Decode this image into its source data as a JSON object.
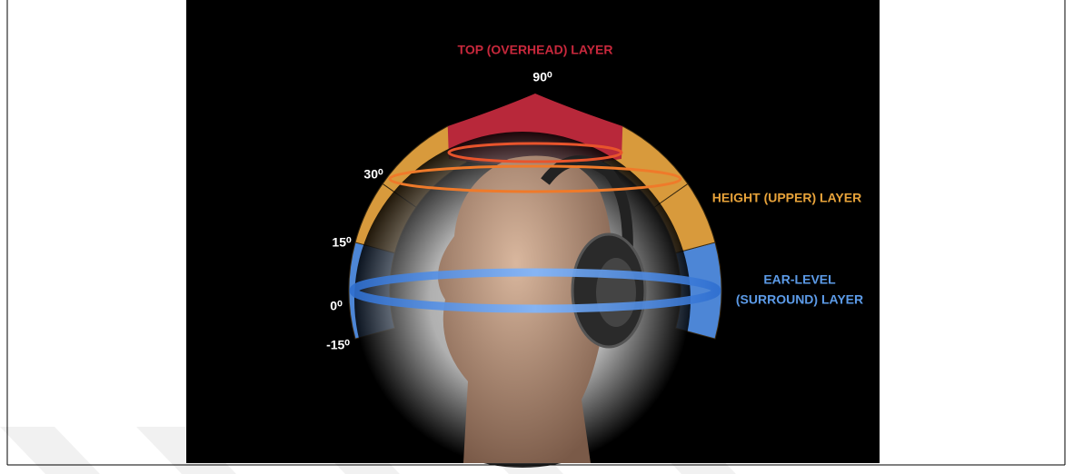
{
  "diagram": {
    "layers": {
      "top": "TOP (OVERHEAD) LAYER",
      "height": "HEIGHT (UPPER) LAYER",
      "ear_level": [
        "EAR-LEVEL",
        "(SURROUND) LAYER"
      ]
    },
    "angles": [
      "90⁰",
      "30⁰",
      "15⁰",
      "0⁰",
      "-15⁰"
    ]
  }
}
